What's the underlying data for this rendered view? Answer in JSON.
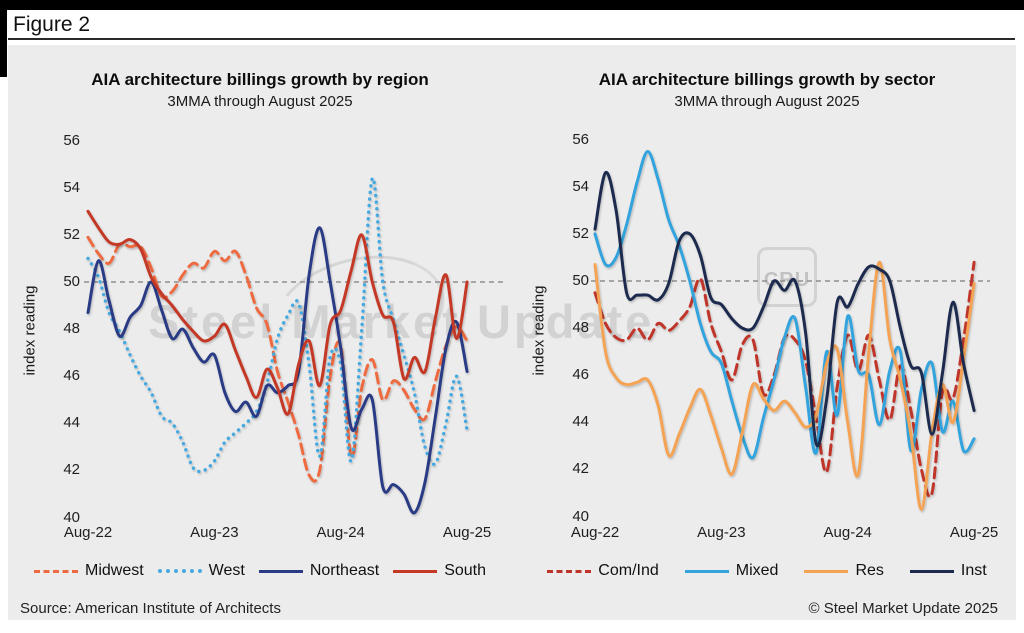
{
  "figure_label": "Figure 2",
  "source_note": "Source: American Institute of Architects",
  "copyright_note": "© Steel Market Update 2025",
  "watermark": {
    "text": "Steel Market Update",
    "badge": "CRU"
  },
  "colors": {
    "panel_background": "#ececec",
    "baseline_gray": "#8f8f8f",
    "midwest": "#ee6b41",
    "west": "#45a9e0",
    "northeast": "#2b3a85",
    "south": "#c43826",
    "com_ind": "#bf3429",
    "mixed": "#33a3dc",
    "res": "#f4a355",
    "inst": "#1d2a4d"
  },
  "chart_data": [
    {
      "type": "line",
      "title": "AIA architecture billings growth by region",
      "subtitle": "3MMA through August 2025",
      "ylabel": "index reading",
      "ylim": [
        40,
        56
      ],
      "y_ticks": [
        56,
        54,
        52,
        50,
        48,
        46,
        44,
        42,
        40
      ],
      "x_ticks": [
        "Aug-22",
        "Aug-23",
        "Aug-24",
        "Aug-25"
      ],
      "baseline": 50,
      "grid": "baseline-only",
      "legend_position": "bottom",
      "x": [
        "Aug-22",
        "Sep-22",
        "Oct-22",
        "Nov-22",
        "Dec-22",
        "Jan-23",
        "Feb-23",
        "Mar-23",
        "Apr-23",
        "May-23",
        "Jun-23",
        "Jul-23",
        "Aug-23",
        "Sep-23",
        "Oct-23",
        "Nov-23",
        "Dec-23",
        "Jan-24",
        "Feb-24",
        "Mar-24",
        "Apr-24",
        "May-24",
        "Jun-24",
        "Jul-24",
        "Aug-24",
        "Sep-24",
        "Oct-24",
        "Nov-24",
        "Dec-24",
        "Jan-25",
        "Feb-25",
        "Mar-25",
        "Apr-25",
        "May-25",
        "Jun-25",
        "Jul-25",
        "Aug-25"
      ],
      "series": [
        {
          "name": "Midwest",
          "color": "#ee6b41",
          "style": "dashed",
          "values": [
            51.9,
            51.2,
            50.8,
            51.6,
            51.5,
            51.5,
            50.6,
            49.4,
            49.6,
            50.3,
            50.8,
            50.6,
            51.3,
            50.9,
            51.3,
            50.3,
            48.9,
            48.2,
            46.2,
            44.9,
            43.5,
            41.8,
            42.0,
            46.0,
            47.3,
            42.6,
            45.5,
            46.7,
            45.0,
            45.8,
            45.4,
            44.6,
            44.2,
            45.8,
            47.3,
            48.1,
            47.5
          ]
        },
        {
          "name": "West",
          "color": "#45a9e0",
          "style": "dotted",
          "values": [
            51.0,
            50.2,
            48.7,
            47.9,
            46.9,
            46.0,
            45.3,
            44.3,
            44.0,
            43.2,
            42.1,
            42.0,
            42.4,
            43.2,
            43.6,
            44.0,
            44.5,
            45.7,
            47.6,
            48.6,
            49.1,
            46.5,
            42.6,
            46.8,
            46.5,
            42.4,
            48.0,
            54.4,
            50.0,
            48.4,
            46.9,
            45.3,
            43.0,
            42.3,
            44.0,
            46.0,
            43.7
          ]
        },
        {
          "name": "Northeast",
          "color": "#2b3a85",
          "style": "solid",
          "values": [
            48.7,
            50.9,
            49.2,
            47.7,
            48.5,
            49.0,
            50.0,
            48.8,
            47.6,
            48.0,
            47.2,
            46.6,
            46.9,
            45.3,
            44.5,
            44.9,
            44.3,
            45.6,
            45.3,
            45.6,
            46.2,
            50.3,
            52.3,
            50.0,
            47.2,
            43.8,
            44.6,
            45.0,
            41.3,
            41.4,
            41.0,
            40.2,
            41.5,
            44.3,
            47.2,
            48.3,
            46.2
          ]
        },
        {
          "name": "South",
          "color": "#c43826",
          "style": "solid",
          "values": [
            53.0,
            52.3,
            51.7,
            51.6,
            51.8,
            51.4,
            50.2,
            49.5,
            49.0,
            48.4,
            47.9,
            47.5,
            47.7,
            48.2,
            47.1,
            46.0,
            45.1,
            46.3,
            45.5,
            44.4,
            46.5,
            47.5,
            45.6,
            48.2,
            48.8,
            50.5,
            52.0,
            50.0,
            48.6,
            48.3,
            45.9,
            46.8,
            46.2,
            48.5,
            50.3,
            47.6,
            50.0
          ]
        }
      ]
    },
    {
      "type": "line",
      "title": "AIA architecture billings growth by sector",
      "subtitle": "3MMA through August 2025",
      "ylabel": "index reading",
      "ylim": [
        40,
        56
      ],
      "y_ticks": [
        56,
        54,
        52,
        50,
        48,
        46,
        44,
        42,
        40
      ],
      "x_ticks": [
        "Aug-22",
        "Aug-23",
        "Aug-24",
        "Aug-25"
      ],
      "baseline": 50,
      "grid": "baseline-only",
      "legend_position": "bottom",
      "x": [
        "Aug-22",
        "Sep-22",
        "Oct-22",
        "Nov-22",
        "Dec-22",
        "Jan-23",
        "Feb-23",
        "Mar-23",
        "Apr-23",
        "May-23",
        "Jun-23",
        "Jul-23",
        "Aug-23",
        "Sep-23",
        "Oct-23",
        "Nov-23",
        "Dec-23",
        "Jan-24",
        "Feb-24",
        "Mar-24",
        "Apr-24",
        "May-24",
        "Jun-24",
        "Jul-24",
        "Aug-24",
        "Sep-24",
        "Oct-24",
        "Nov-24",
        "Dec-24",
        "Jan-25",
        "Feb-25",
        "Mar-25",
        "Apr-25",
        "May-25",
        "Jun-25",
        "Jul-25",
        "Aug-25"
      ],
      "series": [
        {
          "name": "Com/Ind",
          "color": "#bf3429",
          "style": "dashed",
          "values": [
            49.5,
            48.2,
            47.6,
            47.5,
            48.0,
            47.5,
            48.2,
            47.9,
            48.3,
            48.9,
            50.1,
            48.2,
            47.0,
            45.8,
            47.3,
            47.5,
            45.2,
            46.0,
            47.6,
            47.5,
            46.6,
            44.2,
            41.9,
            45.5,
            47.7,
            46.2,
            47.7,
            45.8,
            44.1,
            46.4,
            44.5,
            42.0,
            41.0,
            45.3,
            45.0,
            47.5,
            50.8
          ]
        },
        {
          "name": "Mixed",
          "color": "#33a3dc",
          "style": "solid",
          "values": [
            52.0,
            50.7,
            51.0,
            52.4,
            54.2,
            55.5,
            54.3,
            52.6,
            51.5,
            50.0,
            48.2,
            47.0,
            46.5,
            44.9,
            43.4,
            42.5,
            44.2,
            45.8,
            47.6,
            48.4,
            45.5,
            42.7,
            47.0,
            44.3,
            48.5,
            46.2,
            46.0,
            43.9,
            46.2,
            47.0,
            42.8,
            45.4,
            46.5,
            43.6,
            44.9,
            42.8,
            43.3
          ]
        },
        {
          "name": "Res",
          "color": "#f4a355",
          "style": "solid",
          "values": [
            50.7,
            47.0,
            45.9,
            45.6,
            45.7,
            45.8,
            44.7,
            42.6,
            43.5,
            44.6,
            45.4,
            44.3,
            42.9,
            41.8,
            43.6,
            45.6,
            45.0,
            44.5,
            44.9,
            44.4,
            43.8,
            44.3,
            46.5,
            47.1,
            44.0,
            41.8,
            47.0,
            50.8,
            47.5,
            45.8,
            43.5,
            40.3,
            43.6,
            45.6,
            44.0,
            46.7,
            49.9
          ]
        },
        {
          "name": "Inst",
          "color": "#1d2a4d",
          "style": "solid",
          "values": [
            52.2,
            54.6,
            53.0,
            49.5,
            49.4,
            49.4,
            49.2,
            49.9,
            51.7,
            52.0,
            51.1,
            49.3,
            49.0,
            48.4,
            48.0,
            48.0,
            48.9,
            50.0,
            49.6,
            50.0,
            47.8,
            43.1,
            45.0,
            49.1,
            48.9,
            49.9,
            50.6,
            50.5,
            50.0,
            48.0,
            46.4,
            46.1,
            43.5,
            46.1,
            49.1,
            46.5,
            44.5
          ]
        }
      ]
    }
  ]
}
